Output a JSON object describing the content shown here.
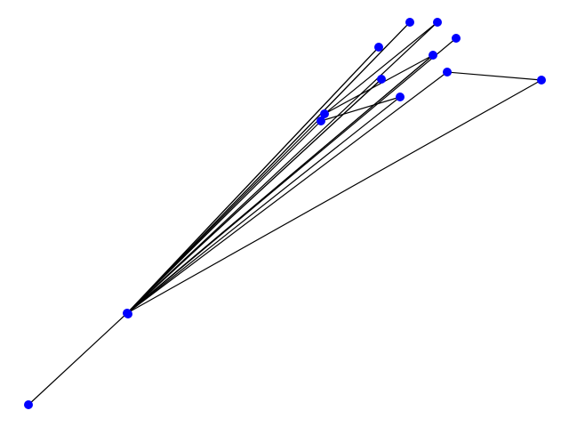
{
  "graph": {
    "node_color": "#0000ff",
    "edge_color": "#000000",
    "background": "#ffffff",
    "nodes": [
      {
        "id": "n0"
      },
      {
        "id": "n1"
      },
      {
        "id": "n2"
      },
      {
        "id": "n3"
      },
      {
        "id": "n4"
      },
      {
        "id": "n5"
      },
      {
        "id": "n6"
      },
      {
        "id": "n7"
      },
      {
        "id": "n8"
      },
      {
        "id": "n9"
      },
      {
        "id": "n10"
      },
      {
        "id": "n11"
      },
      {
        "id": "n12"
      },
      {
        "id": "n13"
      }
    ],
    "edges": [
      [
        "n0",
        "n1"
      ],
      [
        "n0",
        "n2"
      ],
      [
        "n0",
        "n3"
      ],
      [
        "n0",
        "n4"
      ],
      [
        "n0",
        "n5"
      ],
      [
        "n0",
        "n6"
      ],
      [
        "n0",
        "n7"
      ],
      [
        "n0",
        "n8"
      ],
      [
        "n0",
        "n9"
      ],
      [
        "n0",
        "n10"
      ],
      [
        "n0",
        "n11"
      ],
      [
        "n0",
        "n12"
      ],
      [
        "n0",
        "n13"
      ],
      [
        "n0",
        "n13"
      ],
      [
        "n0",
        "n9"
      ],
      [
        "n0",
        "n4"
      ],
      [
        "n0",
        "n2"
      ],
      [
        "n0",
        "n6"
      ],
      [
        "n7",
        "n8"
      ],
      [
        "n12",
        "n10"
      ],
      [
        "n11",
        "n6"
      ],
      [
        "n11",
        "n3"
      ]
    ]
  }
}
